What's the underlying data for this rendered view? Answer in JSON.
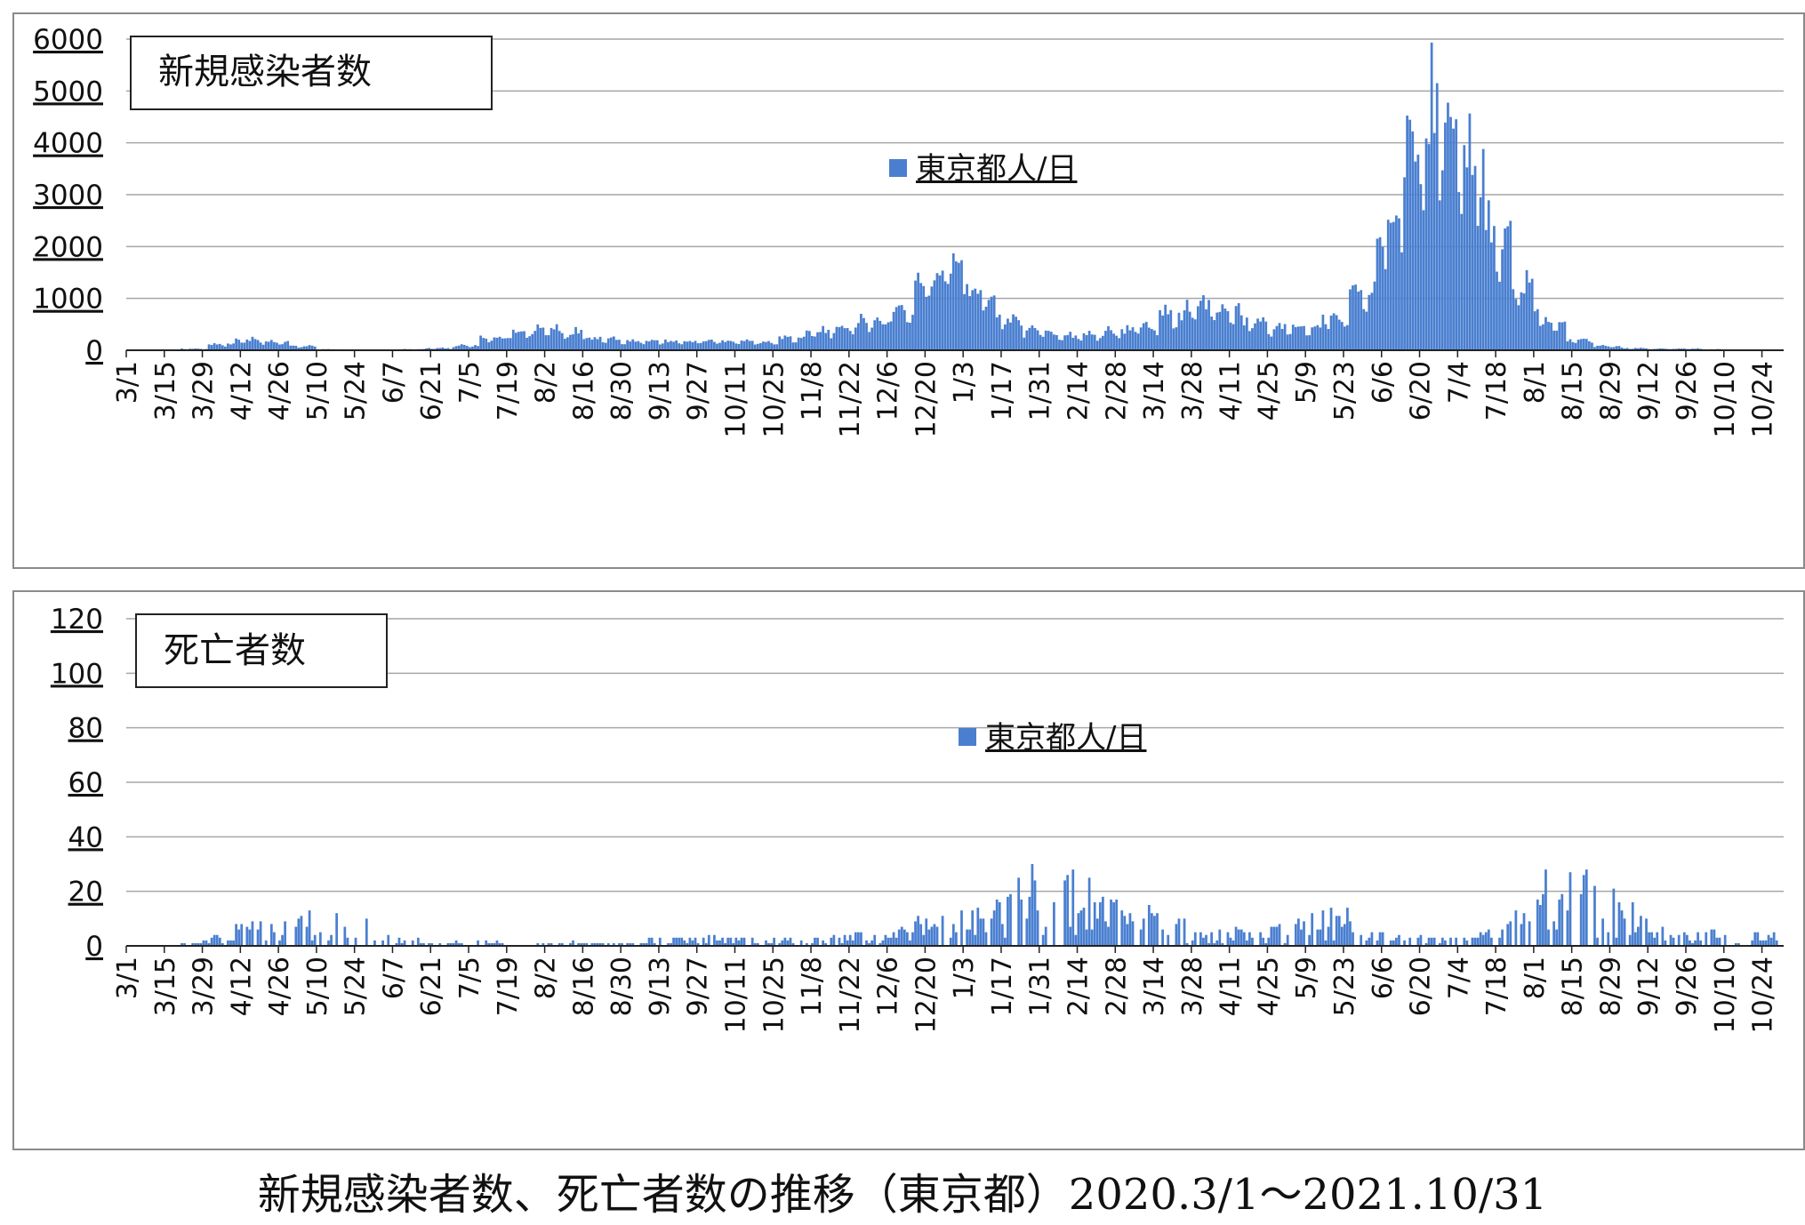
{
  "caption": "新規感染者数、死亡者数の推移（東京都）2020.3/1～2021.10/31",
  "colors": {
    "bar": "#4a7fd0",
    "grid": "#a6a6a6",
    "axis": "#222222"
  },
  "chart_data": [
    {
      "type": "bar",
      "title": "新規感染者数",
      "legend": "東京都人/日",
      "legend_position": "top-center",
      "grid": true,
      "ylim": [
        0,
        6000
      ],
      "yticks": [
        "0",
        "1000",
        "2000",
        "3000",
        "4000",
        "5000",
        "6000"
      ],
      "xtick_labels": [
        "3/1",
        "3/15",
        "3/29",
        "4/12",
        "4/26",
        "5/10",
        "5/24",
        "6/7",
        "6/21",
        "7/5",
        "7/19",
        "8/2",
        "8/16",
        "8/30",
        "9/13",
        "9/27",
        "10/11",
        "10/25",
        "11/8",
        "11/22",
        "12/6",
        "12/20",
        "1/3",
        "1/17",
        "1/31",
        "2/14",
        "2/28",
        "3/14",
        "3/28",
        "4/11",
        "4/25",
        "5/9",
        "5/23",
        "6/6",
        "6/20",
        "7/4",
        "7/18",
        "8/1",
        "8/15",
        "8/29",
        "9/12",
        "9/26",
        "10/10",
        "10/24"
      ],
      "x_start": "2020-03-01",
      "x_end": "2021-10-31",
      "weekly_values": [
        5,
        10,
        30,
        120,
        200,
        160,
        80,
        20,
        10,
        5,
        20,
        40,
        90,
        230,
        350,
        420,
        350,
        240,
        190,
        180,
        170,
        180,
        170,
        160,
        240,
        370,
        470,
        560,
        790,
        1360,
        1700,
        1060,
        620,
        380,
        280,
        310,
        370,
        480,
        680,
        870,
        800,
        560,
        440,
        450,
        630,
        1090,
        2500,
        4150,
        4500,
        3800,
        2200,
        1250,
        500,
        200,
        80,
        40,
        30,
        30,
        20,
        10
      ],
      "unit": "東京都人/日"
    },
    {
      "type": "bar",
      "title": "死亡者数",
      "legend": "東京都人/日",
      "legend_position": "top-center",
      "grid": true,
      "ylim": [
        0,
        120
      ],
      "yticks": [
        "0",
        "20",
        "40",
        "60",
        "80",
        "100",
        "120"
      ],
      "xtick_labels": [
        "3/1",
        "3/15",
        "3/29",
        "4/12",
        "4/26",
        "5/10",
        "5/24",
        "6/7",
        "6/21",
        "7/5",
        "7/19",
        "8/2",
        "8/16",
        "8/30",
        "9/13",
        "9/27",
        "10/11",
        "10/25",
        "11/8",
        "11/22",
        "12/6",
        "12/20",
        "1/3",
        "1/17",
        "1/31",
        "2/14",
        "2/28",
        "3/14",
        "3/28",
        "4/11",
        "4/25",
        "5/9",
        "5/23",
        "6/6",
        "6/20",
        "7/4",
        "7/18",
        "8/1",
        "8/15",
        "8/29",
        "9/12",
        "9/26",
        "10/10",
        "10/24"
      ],
      "x_start": "2020-03-01",
      "x_end": "2021-10-31",
      "weekly_values": [
        0,
        0,
        1,
        3,
        5,
        6,
        8,
        7,
        6,
        4,
        2,
        1,
        1,
        1,
        0,
        1,
        1,
        1,
        1,
        2,
        2,
        2,
        2,
        2,
        2,
        2,
        3,
        3,
        4,
        6,
        8,
        9,
        14,
        17,
        16,
        14,
        12,
        10,
        6,
        3,
        4,
        4,
        5,
        7,
        8,
        6,
        4,
        2,
        2,
        3,
        5,
        12,
        16,
        17,
        13,
        10,
        4,
        4,
        4,
        3
      ],
      "unit": "東京都人/日"
    }
  ]
}
